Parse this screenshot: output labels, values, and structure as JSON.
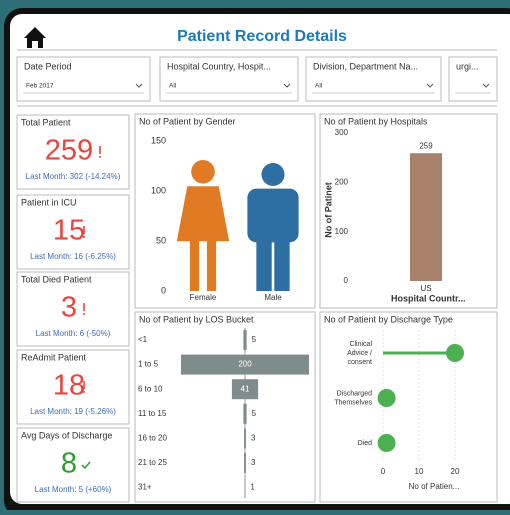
{
  "header": {
    "title": "Patient Record Details"
  },
  "filters": [
    {
      "label": "Date Period",
      "value": "Feb 2017"
    },
    {
      "label": "Hospital Country, Hospit...",
      "value": "All"
    },
    {
      "label": "Division, Department Na...",
      "value": "All"
    },
    {
      "label": "urgi..."
    }
  ],
  "kpis": [
    {
      "label": "Total Patient",
      "value": 259,
      "comparison": "Last Month: 302 (-14.24%)",
      "color": "#e8453c"
    },
    {
      "label": "Patient in ICU",
      "value": 15,
      "comparison": "Last Month: 16 (-6.25%)",
      "color": "#e8453c"
    },
    {
      "label": "Total Died Patient",
      "value": 3,
      "comparison": "Last Month: 6 (-50%)",
      "color": "#e8453c"
    },
    {
      "label": "ReAdmit Patient",
      "value": 18,
      "comparison": "Last Month: 19 (-5.26%)",
      "color": "#e8453c"
    },
    {
      "label": "Avg Days of Discharge",
      "value": 8,
      "comparison": "Last Month: 5 (+60%)",
      "color": "#2ca02c"
    }
  ],
  "chart_data": [
    {
      "type": "pictogram",
      "title": "No of Patient by Gender",
      "categories": [
        "Female",
        "Male"
      ],
      "values": [
        131,
        128
      ],
      "colors": [
        "#e07b24",
        "#2e6fa3"
      ],
      "ylim": [
        0,
        150
      ],
      "yticks": [
        0,
        50,
        100,
        150
      ]
    },
    {
      "type": "bar",
      "title": "No of Patient by Hospitals",
      "y_label": "No of Patinet",
      "x_label": "Hospital Countr...",
      "categories": [
        "US"
      ],
      "values": [
        259
      ],
      "color": "#a9806a",
      "ylim": [
        0,
        300
      ],
      "yticks": [
        0,
        100,
        200,
        300
      ]
    },
    {
      "type": "funnel",
      "title": "No of Patient by LOS Bucket",
      "categories": [
        "<1",
        "1 to 5",
        "6 to 10",
        "11 to 15",
        "16 to 20",
        "21 to 25",
        "31+"
      ],
      "values": [
        5,
        200,
        41,
        5,
        3,
        3,
        1
      ],
      "color": "#7f8c8d",
      "xlim": [
        0,
        200
      ]
    },
    {
      "type": "lollipop",
      "title": "No of Patient by Discharge Type",
      "x_label": "No of Patien...",
      "categories": [
        "Clinical Advice / consent",
        "Discharged Themselves",
        "Died"
      ],
      "values": [
        20,
        1,
        1
      ],
      "color": "#4caf50",
      "xlim": [
        0,
        25
      ],
      "xticks": [
        0,
        10,
        20
      ]
    }
  ]
}
